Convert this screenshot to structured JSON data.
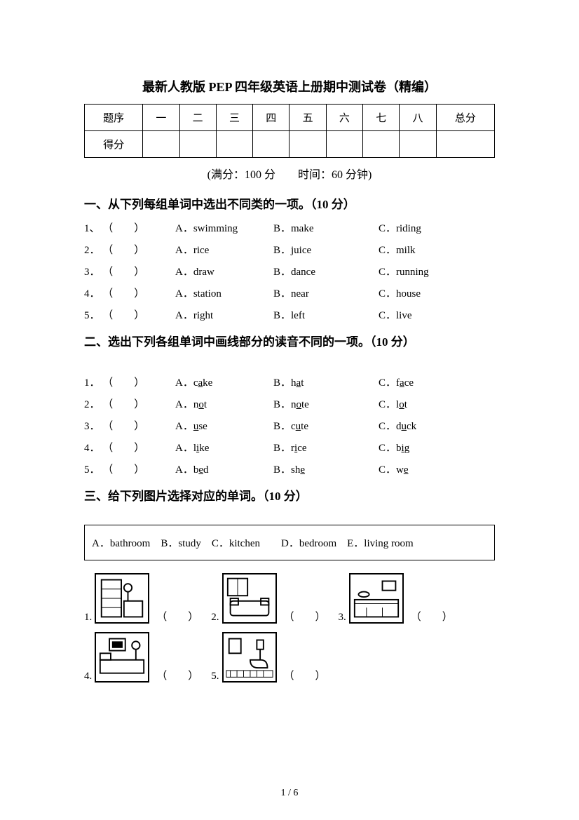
{
  "title": "最新人教版 PEP 四年级英语上册期中测试卷（精编）",
  "scoreTable": {
    "row1Label": "题序",
    "row2Label": "得分",
    "cols": [
      "一",
      "二",
      "三",
      "四",
      "五",
      "六",
      "七",
      "八"
    ],
    "totalLabel": "总分"
  },
  "meta": "(满分：100 分　　时间：60 分钟)",
  "section1": {
    "header": "一、从下列每组单词中选出不同类的一项。（10 分）",
    "questions": [
      {
        "n": "1、",
        "a": "A．swimming",
        "b": "B．make",
        "c": "C．riding"
      },
      {
        "n": "2．",
        "a": "A．rice",
        "b": "B．juice",
        "c": "C．milk"
      },
      {
        "n": "3．",
        "a": "A．draw",
        "b": "B．dance",
        "c": "C．running"
      },
      {
        "n": "4．",
        "a": "A．station",
        "b": "B．near",
        "c": "C．house"
      },
      {
        "n": "5．",
        "a": "A．right",
        "b": "B．left",
        "c": "C．live"
      }
    ]
  },
  "section2": {
    "header": "二、选出下列各组单词中画线部分的读音不同的一项。（10 分）",
    "questions": [
      {
        "n": "1．",
        "aPre": "A．c",
        "aU": "a",
        "aPost": "ke",
        "bPre": "B．h",
        "bU": "a",
        "bPost": "t",
        "cPre": "C．f",
        "cU": "a",
        "cPost": "ce"
      },
      {
        "n": "2．",
        "aPre": "A．n",
        "aU": "o",
        "aPost": "t",
        "bPre": "B．n",
        "bU": "o",
        "bPost": "te",
        "cPre": "C．l",
        "cU": "o",
        "cPost": "t"
      },
      {
        "n": "3．",
        "aPre": "A．",
        "aU": "u",
        "aPost": "se",
        "bPre": "B．c",
        "bU": "u",
        "bPost": "te",
        "cPre": "C．d",
        "cU": "u",
        "cPost": "ck"
      },
      {
        "n": "4．",
        "aPre": "A．l",
        "aU": "i",
        "aPost": "ke",
        "bPre": "B．r",
        "bU": "i",
        "bPost": "ce",
        "cPre": "C．b",
        "cU": "i",
        "cPost": "g"
      },
      {
        "n": "5．",
        "aPre": "A．b",
        "aU": "e",
        "aPost": "d",
        "bPre": "B．sh",
        "bU": "e",
        "bPost": "",
        "cPre": "C．w",
        "cU": "e",
        "cPost": ""
      }
    ]
  },
  "section3": {
    "header": "三、给下列图片选择对应的单词。（10 分）",
    "wordbox": "A．bathroom　B．study　C．kitchen　　D．bedroom　E．living room",
    "items": [
      {
        "n": "1."
      },
      {
        "n": "2."
      },
      {
        "n": "3."
      },
      {
        "n": "4."
      },
      {
        "n": "5."
      }
    ]
  },
  "paren": "（　　）",
  "blankParen": "（　　）",
  "pageNum": "1 / 6"
}
